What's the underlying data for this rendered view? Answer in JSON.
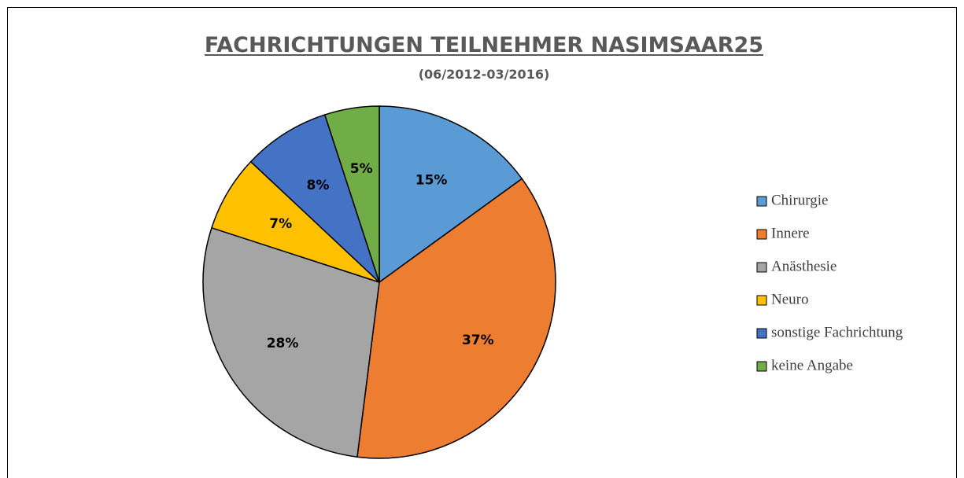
{
  "chart_data": {
    "type": "pie",
    "title": "FACHRICHTUNGEN TEILNEHMER NASIMSAAR25",
    "subtitle": "(06/2012-03/2016)",
    "categories": [
      "Chirurgie",
      "Innere",
      "Anästhesie",
      "Neuro",
      "sonstige Fachrichtung",
      "keine Angabe"
    ],
    "values": [
      15,
      37,
      28,
      7,
      8,
      5
    ],
    "value_labels": [
      "15%",
      "37%",
      "28%",
      "7%",
      "8%",
      "5%"
    ],
    "colors": [
      "#5b9bd5",
      "#ed7d31",
      "#a5a5a5",
      "#ffc000",
      "#4472c4",
      "#70ad47"
    ],
    "legend": "right"
  }
}
